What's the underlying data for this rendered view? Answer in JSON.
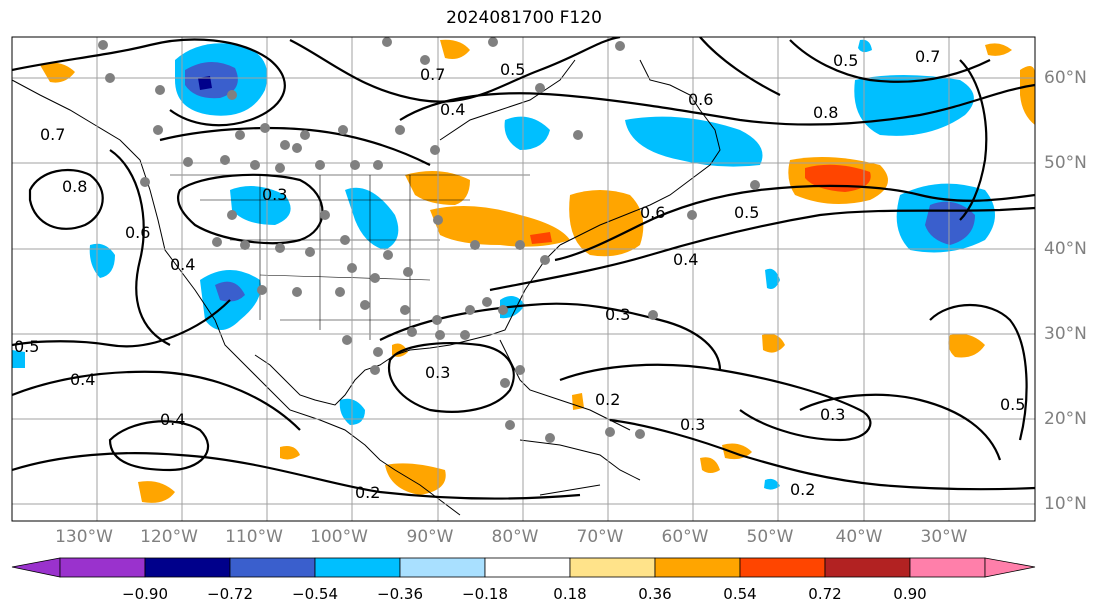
{
  "title": "2024081700 F120",
  "lon_labels": [
    "130°W",
    "120°W",
    "110°W",
    "100°W",
    "90°W",
    "80°W",
    "70°W",
    "60°W",
    "50°W",
    "40°W",
    "30°W"
  ],
  "lat_labels": [
    "60°N",
    "50°N",
    "40°N",
    "30°N",
    "20°N",
    "10°N"
  ],
  "colorbar": {
    "ticks": [
      "−0.90",
      "−0.72",
      "−0.54",
      "−0.36",
      "−0.18",
      "0.18",
      "0.36",
      "0.54",
      "0.72",
      "0.90"
    ],
    "colors": [
      "#9a32cd",
      "#00008b",
      "#3a5fcd",
      "#00bfff",
      "#a9e0ff",
      "#ffffff",
      "#ffe38a",
      "#ffa500",
      "#ff4500",
      "#b22222",
      "#ff7faa"
    ]
  },
  "contour_labels": [
    "0.7",
    "0.7",
    "0.6",
    "0.8",
    "0.7",
    "0.4",
    "0.5",
    "0.4",
    "0.6",
    "0.5",
    "0.4",
    "0.3",
    "0.3",
    "0.3",
    "0.2",
    "0.2",
    "0.4",
    "0.4",
    "0.5",
    "0.5",
    "0.8",
    "0.6",
    "0.3",
    "0.2",
    "0.3",
    "0.5"
  ]
}
